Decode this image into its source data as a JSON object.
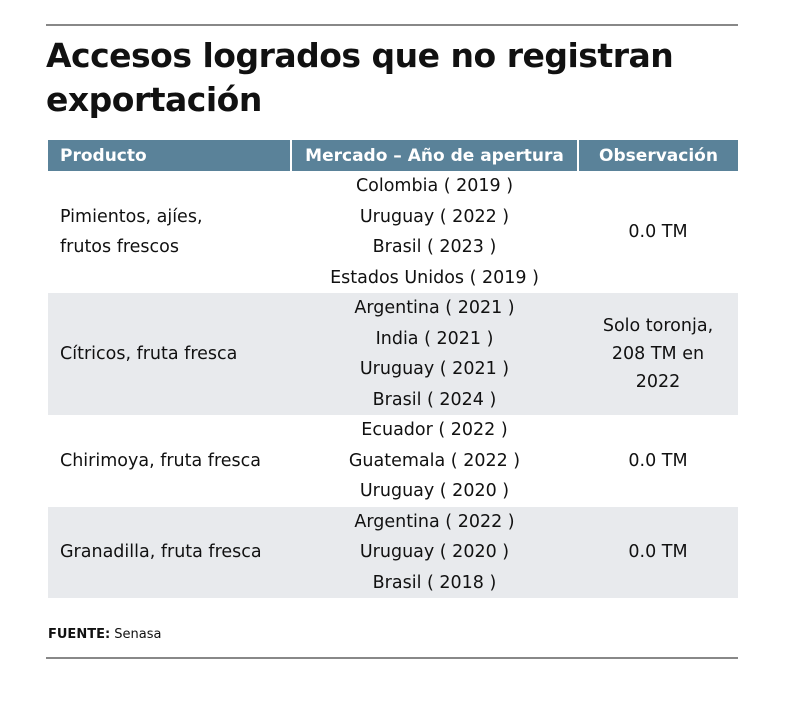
{
  "title": "Accesos logrados que no registran exportación",
  "chart_data": {
    "type": "table",
    "columns": [
      "Producto",
      "Mercado – Año de apertura",
      "Observación"
    ],
    "rows": [
      {
        "product": "Pimientos, ajíes, frutos frescos",
        "markets": [
          "Colombia ( 2019 )",
          "Uruguay ( 2022 )",
          "Brasil ( 2023 )",
          "Estados Unidos ( 2019 )"
        ],
        "note": "0.0 TM"
      },
      {
        "product": "Cítricos, fruta fresca",
        "markets": [
          "Argentina ( 2021 )",
          "India ( 2021 )",
          "Uruguay ( 2021 )",
          "Brasil ( 2024 )"
        ],
        "note": "Solo toronja, 208 TM en 2022"
      },
      {
        "product": "Chirimoya, fruta fresca",
        "markets": [
          "Ecuador ( 2022 )",
          "Guatemala ( 2022 )",
          "Uruguay ( 2020 )"
        ],
        "note": "0.0 TM"
      },
      {
        "product": "Granadilla, fruta fresca",
        "markets": [
          "Argentina ( 2022 )",
          "Uruguay ( 2020 )",
          "Brasil ( 2018 )"
        ],
        "note": "0.0 TM"
      }
    ]
  },
  "source": {
    "label": "FUENTE:",
    "value": "Senasa"
  },
  "colors": {
    "header": "#5a8299",
    "alt_row": "#e8eaed"
  }
}
